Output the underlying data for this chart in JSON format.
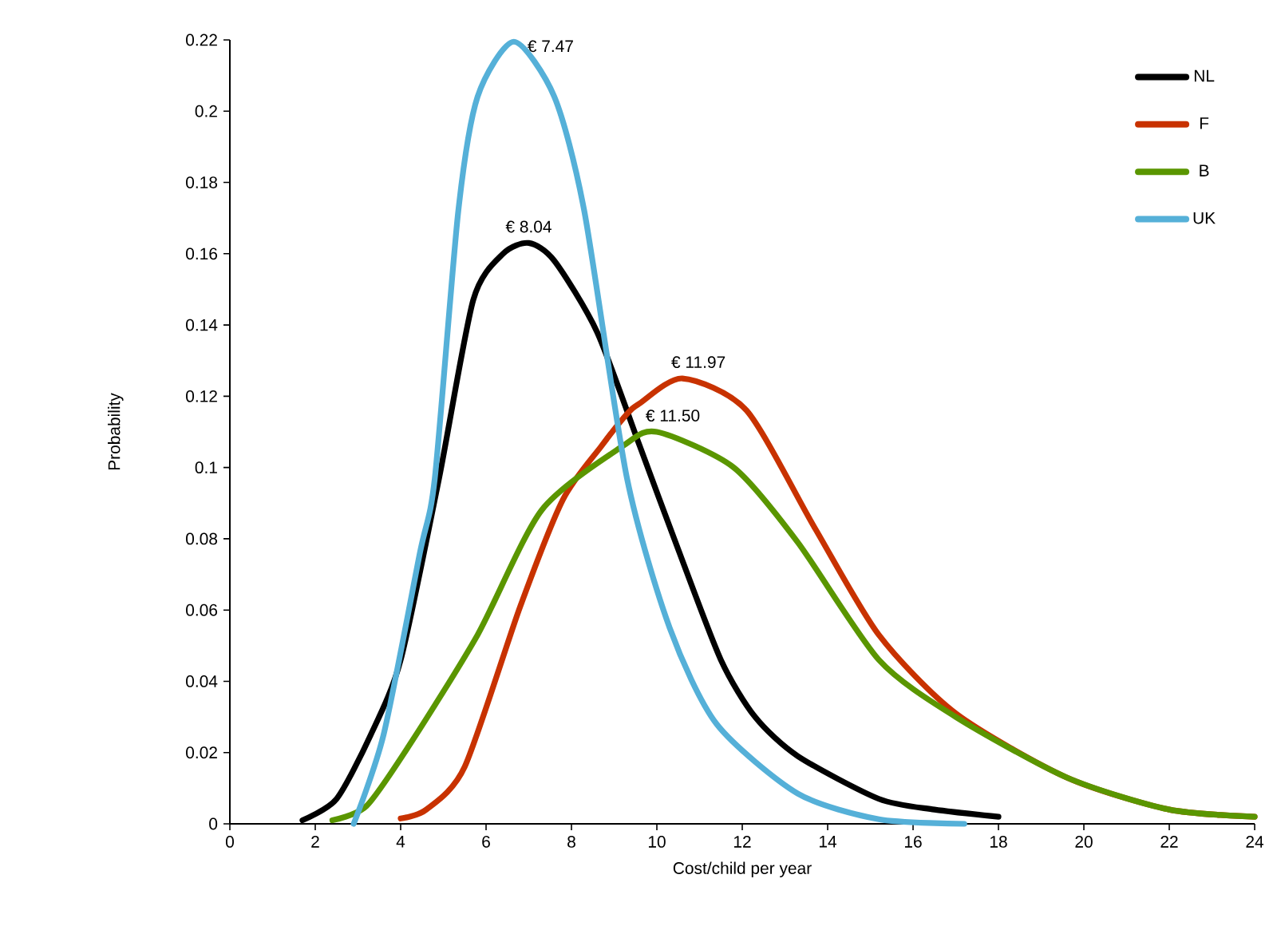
{
  "chart_data": {
    "type": "line",
    "xlabel": "Cost/child per year",
    "ylabel": "Probability",
    "xlim": [
      0,
      24
    ],
    "xticks": [
      0,
      2,
      4,
      6,
      8,
      10,
      12,
      14,
      16,
      18,
      20,
      22,
      24
    ],
    "ylim": [
      0,
      0.22
    ],
    "yticks": [
      0,
      0.02,
      0.04,
      0.06,
      0.08,
      0.1,
      0.12,
      0.14,
      0.16,
      0.18,
      0.2,
      0.22
    ],
    "legend": "top right",
    "grid": false,
    "marker": "none",
    "line_style": "solid",
    "series": [
      {
        "name": "NL",
        "color": "#000000",
        "x": [
          1.7,
          2.5,
          3.3,
          4,
          4.9,
          5.7,
          6.4,
          7,
          7.6,
          8.6,
          9.6,
          10.5,
          11.5,
          12.3,
          13.3,
          15.2,
          16.5,
          18
        ],
        "values": [
          0.001,
          0.007,
          0.025,
          0.046,
          0.097,
          0.147,
          0.16,
          0.163,
          0.158,
          0.138,
          0.106,
          0.077,
          0.046,
          0.03,
          0.019,
          0.007,
          0.004,
          0.002
        ]
      },
      {
        "name": "F",
        "color": "#c83200",
        "x": [
          4,
          4.6,
          5.5,
          6.8,
          7.8,
          8.7,
          9.3,
          9.6,
          10.6,
          12.1,
          13.7,
          15.2,
          17,
          19.6,
          22,
          24
        ],
        "values": [
          0.0015,
          0.004,
          0.016,
          0.061,
          0.091,
          0.106,
          0.115,
          0.118,
          0.125,
          0.116,
          0.083,
          0.053,
          0.031,
          0.013,
          0.004,
          0.002
        ]
      },
      {
        "name": "B",
        "color": "#5a9600",
        "x": [
          2.4,
          3.2,
          4.2,
          5.8,
          7.3,
          9.2,
          10,
          11.8,
          13.3,
          15.2,
          17,
          19.6,
          22,
          24
        ],
        "values": [
          0.001,
          0.005,
          0.022,
          0.053,
          0.088,
          0.106,
          0.11,
          0.1,
          0.079,
          0.046,
          0.03,
          0.013,
          0.004,
          0.002
        ]
      },
      {
        "name": "UK",
        "color": "#55b0d8",
        "x": [
          2.9,
          3.6,
          4.45,
          4.8,
          5.35,
          5.8,
          6.65,
          7.6,
          8.3,
          9.3,
          10.3,
          11.4,
          13.3,
          15.2,
          17.2
        ],
        "values": [
          0,
          0.025,
          0.076,
          0.097,
          0.172,
          0.204,
          0.2195,
          0.204,
          0.172,
          0.097,
          0.055,
          0.028,
          0.0085,
          0.0013,
          0
        ]
      }
    ],
    "annotations": [
      {
        "text": "€ 8.04",
        "x": 7.0,
        "y": 0.163
      },
      {
        "text": "€ 11.97",
        "x": 10.6,
        "y": 0.125
      },
      {
        "text": "€ 11.50",
        "x": 10.0,
        "y": 0.11
      },
      {
        "text": "€ 7.47",
        "x": 6.65,
        "y": 0.2195
      }
    ]
  }
}
